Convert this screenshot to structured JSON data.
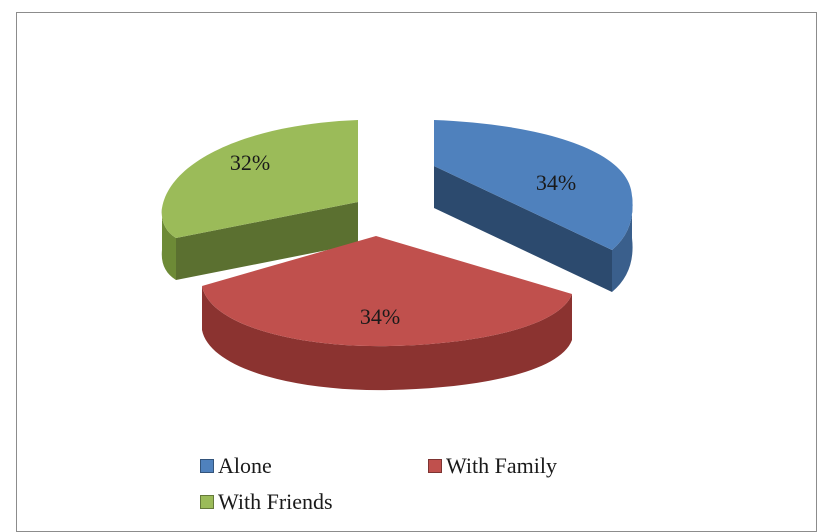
{
  "chart_data": {
    "type": "pie",
    "style": "3d-exploded",
    "slices": [
      {
        "label": "Alone",
        "value": 34,
        "display": "34%",
        "color": "#4f81bd"
      },
      {
        "label": "With Family",
        "value": 34,
        "display": "34%",
        "color": "#c0504d"
      },
      {
        "label": "With Friends",
        "value": 32,
        "display": "32%",
        "color": "#9bbb59"
      }
    ],
    "legend_position": "bottom"
  }
}
